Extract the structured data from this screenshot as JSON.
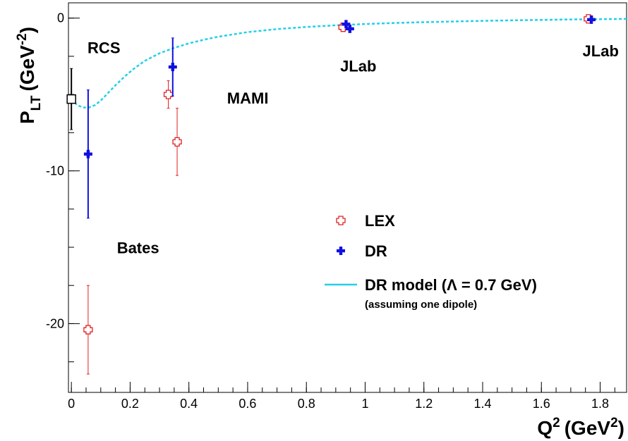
{
  "chart_data": {
    "type": "scatter",
    "xlabel": "Q",
    "xlabel_sup": "2",
    "xlabel_unit": "(GeV",
    "xlabel_unit_sup": "2",
    "xlabel_close": ")",
    "ylabel": "P",
    "ylabel_sub": "LT",
    "ylabel_unit": "(GeV",
    "ylabel_unit_sup": "-2",
    "ylabel_close": ")",
    "xlim": [
      -0.01,
      1.89
    ],
    "ylim": [
      -24.5,
      1.0
    ],
    "x_ticks": [
      0,
      0.2,
      0.4,
      0.6,
      0.8,
      1,
      1.2,
      1.4,
      1.6,
      1.8
    ],
    "x_tick_labels": [
      "0",
      "0.2",
      "0.4",
      "0.6",
      "0.8",
      "1",
      "1.2",
      "1.4",
      "1.6",
      "1.8"
    ],
    "y_ticks": [
      0,
      -10,
      -20
    ],
    "y_tick_labels": [
      "0",
      "-10",
      "-20"
    ],
    "y_minor_step": 2.5,
    "x_minor_step": 0.05,
    "grid": false,
    "legend_position": "center-right",
    "series": [
      {
        "name": "LEX",
        "marker": "open-cross",
        "color": "#e02020",
        "points": [
          {
            "x": 0.057,
            "y": -20.4,
            "err": 2.9
          },
          {
            "x": 0.33,
            "y": -5.0,
            "err": 0.9
          },
          {
            "x": 0.36,
            "y": -8.1,
            "err": 2.2
          },
          {
            "x": 0.925,
            "y": -0.6,
            "err": 0.1
          },
          {
            "x": 1.76,
            "y": -0.05,
            "err": 0.08
          }
        ]
      },
      {
        "name": "DR",
        "marker": "filled-cross",
        "color": "#1010e0",
        "points": [
          {
            "x": 0.057,
            "y": -8.9,
            "err": 4.2
          },
          {
            "x": 0.345,
            "y": -3.2,
            "err": 1.9
          },
          {
            "x": 0.935,
            "y": -0.4,
            "err": 0.15
          },
          {
            "x": 0.948,
            "y": -0.7,
            "err": 0.15
          },
          {
            "x": 1.77,
            "y": -0.1,
            "err": 0.08
          }
        ]
      },
      {
        "name": "RCS",
        "marker": "open-square",
        "color": "#000000",
        "points": [
          {
            "x": 0.0,
            "y": -5.3,
            "err_up": 2.0,
            "err_down": 2.0
          }
        ]
      }
    ],
    "model": {
      "name": "DR model (Λ = 0.7 GeV)",
      "note": "(assuming one dipole)",
      "color": "#22d0e8",
      "x": [
        0.0,
        0.02,
        0.04,
        0.06,
        0.08,
        0.1,
        0.12,
        0.15,
        0.18,
        0.21,
        0.25,
        0.3,
        0.35,
        0.4,
        0.45,
        0.5,
        0.6,
        0.7,
        0.8,
        0.9,
        1.0,
        1.1,
        1.2,
        1.3,
        1.4,
        1.5,
        1.6,
        1.7,
        1.8,
        1.89
      ],
      "y": [
        -5.3,
        -5.7,
        -5.85,
        -5.85,
        -5.7,
        -5.4,
        -5.0,
        -4.4,
        -3.85,
        -3.35,
        -2.8,
        -2.3,
        -1.95,
        -1.65,
        -1.42,
        -1.22,
        -0.92,
        -0.72,
        -0.58,
        -0.47,
        -0.39,
        -0.32,
        -0.27,
        -0.22,
        -0.18,
        -0.15,
        -0.12,
        -0.09,
        -0.07,
        -0.05
      ]
    },
    "annotations": [
      {
        "text": "RCS",
        "x": 0.055,
        "y": -2.3
      },
      {
        "text": "MAMI",
        "x": 0.53,
        "y": -5.6
      },
      {
        "text": "JLab",
        "x": 0.915,
        "y": -3.5
      },
      {
        "text": "JLab",
        "x": 1.74,
        "y": -2.5
      },
      {
        "text": "Bates",
        "x": 0.155,
        "y": -15.4
      }
    ]
  }
}
